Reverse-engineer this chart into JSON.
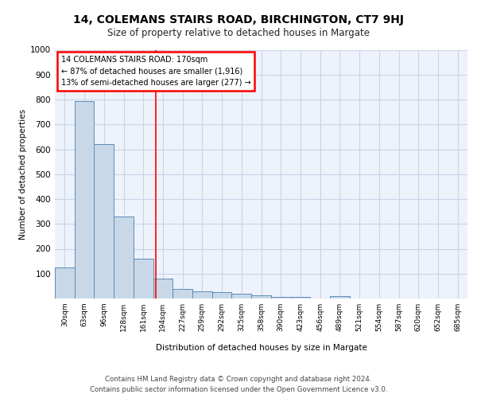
{
  "title1": "14, COLEMANS STAIRS ROAD, BIRCHINGTON, CT7 9HJ",
  "title2": "Size of property relative to detached houses in Margate",
  "xlabel": "Distribution of detached houses by size in Margate",
  "ylabel": "Number of detached properties",
  "categories": [
    "30sqm",
    "63sqm",
    "96sqm",
    "128sqm",
    "161sqm",
    "194sqm",
    "227sqm",
    "259sqm",
    "292sqm",
    "325sqm",
    "358sqm",
    "390sqm",
    "423sqm",
    "456sqm",
    "489sqm",
    "521sqm",
    "554sqm",
    "587sqm",
    "620sqm",
    "652sqm",
    "685sqm"
  ],
  "values": [
    125,
    795,
    620,
    330,
    160,
    80,
    40,
    28,
    25,
    18,
    13,
    8,
    8,
    0,
    10,
    0,
    0,
    0,
    0,
    0,
    0
  ],
  "bar_color": "#c8d8e8",
  "bar_edge_color": "#5b8db8",
  "grid_color": "#c8d4e8",
  "background_color": "#eef2fb",
  "red_line_x": 4.62,
  "annotation_text": "14 COLEMANS STAIRS ROAD: 170sqm\n← 87% of detached houses are smaller (1,916)\n13% of semi-detached houses are larger (277) →",
  "footer": "Contains HM Land Registry data © Crown copyright and database right 2024.\nContains public sector information licensed under the Open Government Licence v3.0.",
  "ylim": [
    0,
    1000
  ],
  "yticks": [
    0,
    100,
    200,
    300,
    400,
    500,
    600,
    700,
    800,
    900,
    1000
  ]
}
